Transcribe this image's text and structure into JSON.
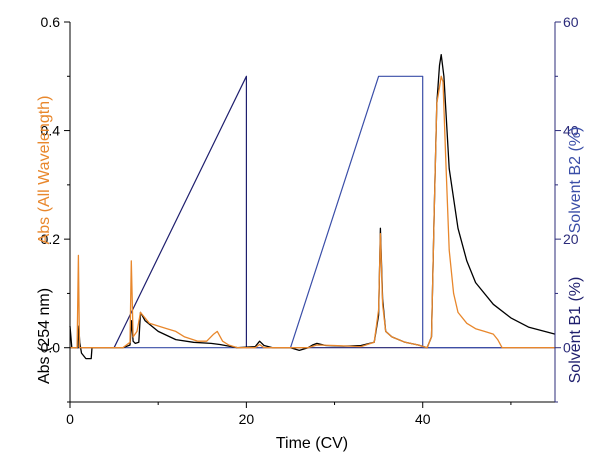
{
  "chart_data": {
    "type": "line",
    "xlabel": "Time (CV)",
    "xlim": [
      0,
      55
    ],
    "x_ticks": [
      0,
      20,
      40
    ],
    "ylim_left": [
      -0.1,
      0.6
    ],
    "y_ticks_left": [
      0.0,
      0.2,
      0.4,
      0.6
    ],
    "ylabel_left_primary": "Abs (254 nm)",
    "ylabel_left_secondary": "Abs (All Wavelength)",
    "ylim_right": [
      -10,
      60
    ],
    "y_ticks_right": [
      0,
      20,
      40,
      60
    ],
    "ylabel_right_primary": "Solvent B1 (%)",
    "ylabel_right_secondary": "Solvent B2 (%)",
    "grid": false,
    "legend": "none",
    "colors": {
      "abs254": "#000000",
      "absall": "#e8872c",
      "solventB1": "#1f1f6e",
      "solventB2": "#3a4ea8",
      "axis_left": "#000000",
      "axis_right": "#2b2b7a"
    },
    "series": [
      {
        "axis": "right",
        "key": "solventB1",
        "points": [
          [
            0,
            0
          ],
          [
            5,
            0
          ],
          [
            20,
            50
          ],
          [
            20,
            0
          ],
          [
            25,
            0
          ],
          [
            55,
            0
          ]
        ]
      },
      {
        "axis": "right",
        "key": "solventB2",
        "points": [
          [
            0,
            0
          ],
          [
            25,
            0
          ],
          [
            35,
            50
          ],
          [
            40,
            50
          ],
          [
            40,
            0
          ],
          [
            55,
            0
          ]
        ]
      },
      {
        "axis": "left",
        "key": "abs254",
        "points": [
          [
            0,
            0.04
          ],
          [
            0.2,
            0.0
          ],
          [
            0.6,
            0.0
          ],
          [
            0.9,
            0.0
          ],
          [
            1.0,
            0.04
          ],
          [
            1.1,
            0.01
          ],
          [
            1.3,
            -0.01
          ],
          [
            1.8,
            -0.02
          ],
          [
            2.4,
            -0.02
          ],
          [
            2.5,
            0.0
          ],
          [
            3,
            0.0
          ],
          [
            5,
            0.0
          ],
          [
            6,
            0.0
          ],
          [
            6.8,
            0.005
          ],
          [
            7.0,
            0.05
          ],
          [
            7.15,
            0.012
          ],
          [
            7.4,
            0.008
          ],
          [
            7.8,
            0.01
          ],
          [
            8.0,
            0.065
          ],
          [
            8.5,
            0.05
          ],
          [
            10,
            0.03
          ],
          [
            12,
            0.015
          ],
          [
            14,
            0.01
          ],
          [
            16,
            0.008
          ],
          [
            17,
            0.006
          ],
          [
            18,
            0.003
          ],
          [
            19,
            0.0
          ],
          [
            21,
            0.002
          ],
          [
            21.5,
            0.012
          ],
          [
            22,
            0.004
          ],
          [
            23,
            0.0
          ],
          [
            25,
            0.0
          ],
          [
            26,
            -0.005
          ],
          [
            27,
            0.0
          ],
          [
            27.5,
            0.005
          ],
          [
            28,
            0.008
          ],
          [
            29,
            0.004
          ],
          [
            31,
            0.003
          ],
          [
            33,
            0.004
          ],
          [
            34.5,
            0.01
          ],
          [
            35,
            0.06
          ],
          [
            35.2,
            0.22
          ],
          [
            35.45,
            0.09
          ],
          [
            35.8,
            0.03
          ],
          [
            36.5,
            0.02
          ],
          [
            38,
            0.01
          ],
          [
            39.5,
            0.005
          ],
          [
            40.5,
            0.0
          ],
          [
            41,
            0.02
          ],
          [
            41.3,
            0.25
          ],
          [
            41.6,
            0.45
          ],
          [
            41.9,
            0.52
          ],
          [
            42.1,
            0.54
          ],
          [
            42.4,
            0.5
          ],
          [
            43,
            0.33
          ],
          [
            44,
            0.22
          ],
          [
            45,
            0.16
          ],
          [
            46,
            0.12
          ],
          [
            48,
            0.08
          ],
          [
            50,
            0.055
          ],
          [
            52,
            0.038
          ],
          [
            55,
            0.025
          ]
        ]
      },
      {
        "axis": "left",
        "key": "absall",
        "points": [
          [
            0,
            0.0
          ],
          [
            0.8,
            0.0
          ],
          [
            0.95,
            0.17
          ],
          [
            1.08,
            0.0
          ],
          [
            2,
            0.0
          ],
          [
            6,
            0.0
          ],
          [
            6.8,
            0.01
          ],
          [
            6.95,
            0.16
          ],
          [
            7.15,
            0.02
          ],
          [
            7.6,
            0.03
          ],
          [
            8.0,
            0.065
          ],
          [
            9,
            0.045
          ],
          [
            10,
            0.04
          ],
          [
            11,
            0.035
          ],
          [
            12,
            0.03
          ],
          [
            13,
            0.02
          ],
          [
            14.5,
            0.012
          ],
          [
            15.5,
            0.012
          ],
          [
            16.3,
            0.025
          ],
          [
            16.7,
            0.03
          ],
          [
            17.3,
            0.012
          ],
          [
            18,
            0.005
          ],
          [
            19,
            0.0
          ],
          [
            21,
            0.0
          ],
          [
            21.5,
            0.006
          ],
          [
            22,
            0.0
          ],
          [
            25,
            0.0
          ],
          [
            27,
            0.0
          ],
          [
            28,
            0.005
          ],
          [
            30,
            0.004
          ],
          [
            33,
            0.002
          ],
          [
            34.5,
            0.01
          ],
          [
            35,
            0.07
          ],
          [
            35.2,
            0.21
          ],
          [
            35.45,
            0.08
          ],
          [
            35.8,
            0.03
          ],
          [
            36.5,
            0.02
          ],
          [
            38,
            0.01
          ],
          [
            39.5,
            0.005
          ],
          [
            40.5,
            0.0
          ],
          [
            41,
            0.02
          ],
          [
            41.3,
            0.25
          ],
          [
            41.6,
            0.45
          ],
          [
            41.9,
            0.48
          ],
          [
            42.1,
            0.5
          ],
          [
            42.3,
            0.49
          ],
          [
            42.6,
            0.35
          ],
          [
            43,
            0.18
          ],
          [
            43.5,
            0.1
          ],
          [
            44,
            0.065
          ],
          [
            45,
            0.045
          ],
          [
            46,
            0.035
          ],
          [
            47,
            0.03
          ],
          [
            48,
            0.025
          ],
          [
            48.5,
            0.015
          ],
          [
            49,
            0.0
          ],
          [
            55,
            0.0
          ]
        ]
      }
    ]
  }
}
